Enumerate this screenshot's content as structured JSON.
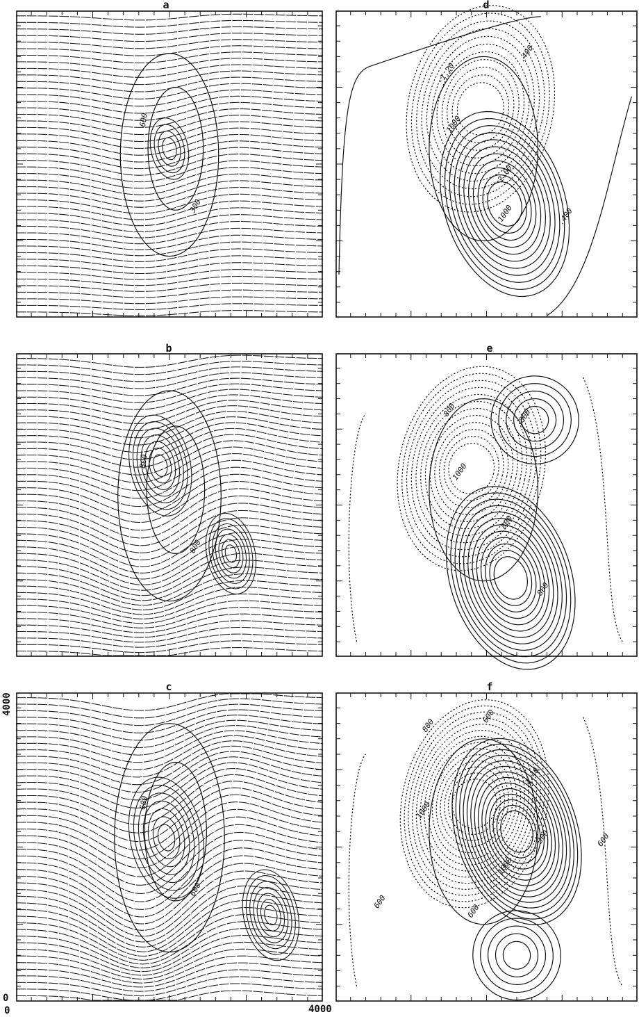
{
  "panels": {
    "a": {
      "title": "a",
      "labels": [
        "600",
        "300"
      ]
    },
    "b": {
      "title": "b",
      "labels": [
        "800",
        "800"
      ]
    },
    "c": {
      "title": "c",
      "labels": [
        "600",
        "600"
      ]
    },
    "d": {
      "title": "d",
      "labels": [
        ".400",
        "-1.20",
        "1000",
        "2.00",
        "1000",
        ".400"
      ]
    },
    "e": {
      "title": "e",
      "labels": [
        "800",
        "800",
        "1000",
        "800",
        "800"
      ]
    },
    "f": {
      "title": "f",
      "labels": [
        "800",
        "600",
        "1000",
        "1.40",
        "300",
        "600",
        "1000",
        "600",
        "600"
      ]
    }
  },
  "axes": {
    "x_min": "0",
    "x_max": "4000",
    "y_max": "4000",
    "y_min": "0"
  }
}
